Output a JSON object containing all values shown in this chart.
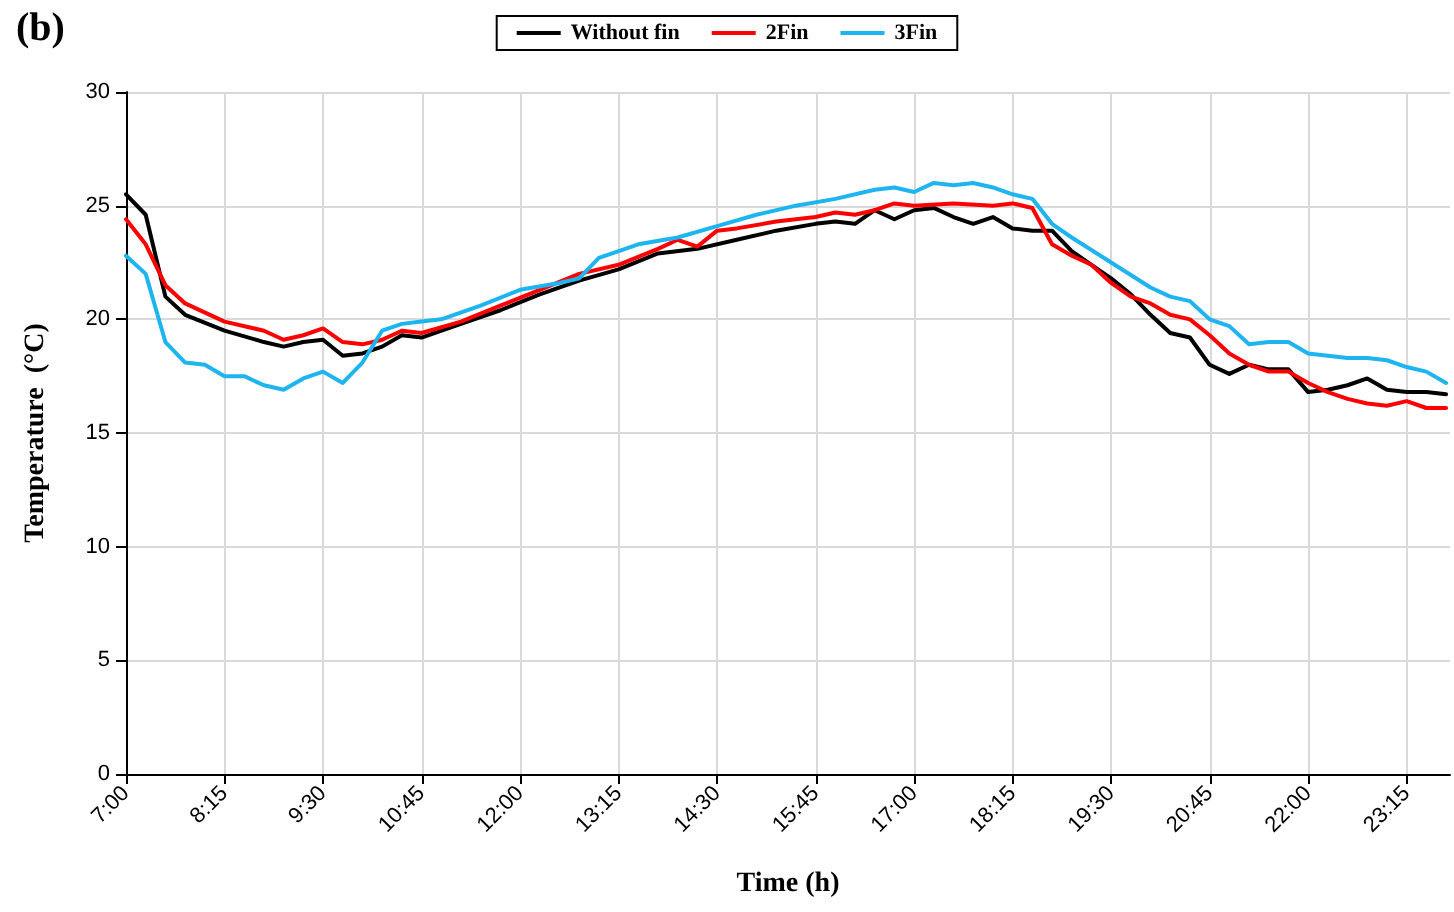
{
  "chart_data": {
    "type": "line",
    "xlabel": "Time (h)",
    "ylabel": "Temperature  (°C)",
    "annotations": [
      "(b)"
    ],
    "xlim": [
      7,
      23.8
    ],
    "xticks": [
      {
        "value": 7,
        "label": "7:00"
      },
      {
        "value": 8.25,
        "label": "8:15"
      },
      {
        "value": 9.5,
        "label": "9:30"
      },
      {
        "value": 10.75,
        "label": "10:45"
      },
      {
        "value": 12,
        "label": "12:00"
      },
      {
        "value": 13.25,
        "label": "13:15"
      },
      {
        "value": 14.5,
        "label": "14:30"
      },
      {
        "value": 15.75,
        "label": "15:45"
      },
      {
        "value": 17,
        "label": "17:00"
      },
      {
        "value": 18.25,
        "label": "18:15"
      },
      {
        "value": 19.5,
        "label": "19:30"
      },
      {
        "value": 20.75,
        "label": "20:45"
      },
      {
        "value": 22,
        "label": "22:00"
      },
      {
        "value": 23.25,
        "label": "23:15"
      }
    ],
    "ylim": [
      0,
      30
    ],
    "yticks": [
      0,
      5,
      10,
      15,
      20,
      25,
      30
    ],
    "grid": true,
    "legend": "top",
    "marker": "none",
    "line_style": "solid",
    "series": [
      {
        "name": "Without fin",
        "color": "#000000",
        "x": [
          7,
          7.25,
          7.5,
          7.75,
          8.25,
          8.75,
          9,
          9.25,
          9.5,
          9.75,
          10,
          10.25,
          10.5,
          10.75,
          11.25,
          11.75,
          12.25,
          12.75,
          13.25,
          13.75,
          14.25,
          14.75,
          15.25,
          15.75,
          16,
          16.25,
          16.5,
          16.75,
          17,
          17.25,
          17.5,
          17.75,
          18,
          18.25,
          18.5,
          18.75,
          19,
          19.25,
          19.5,
          19.75,
          20,
          20.25,
          20.5,
          20.75,
          21,
          21.25,
          21.5,
          21.75,
          22,
          22.25,
          22.5,
          22.75,
          23,
          23.25,
          23.5,
          23.75
        ],
        "values": [
          25.5,
          24.6,
          21.0,
          20.2,
          19.5,
          19.0,
          18.8,
          19.0,
          19.1,
          18.4,
          18.5,
          18.8,
          19.3,
          19.2,
          19.8,
          20.4,
          21.1,
          21.7,
          22.2,
          22.9,
          23.1,
          23.5,
          23.9,
          24.2,
          24.3,
          24.2,
          24.8,
          24.4,
          24.8,
          24.9,
          24.5,
          24.2,
          24.5,
          24.0,
          23.9,
          23.9,
          23.0,
          22.4,
          21.8,
          21.1,
          20.2,
          19.4,
          19.2,
          18.0,
          17.6,
          18.0,
          17.8,
          17.8,
          16.8,
          16.9,
          17.1,
          17.4,
          16.9,
          16.8,
          16.8,
          16.7
        ]
      },
      {
        "name": "2Fin",
        "color": "#ff0000",
        "x": [
          7,
          7.25,
          7.5,
          7.75,
          8.25,
          8.75,
          9,
          9.25,
          9.5,
          9.75,
          10,
          10.25,
          10.5,
          10.75,
          11.25,
          11.75,
          12.25,
          12.75,
          13.25,
          13.75,
          14,
          14.25,
          14.5,
          14.75,
          15.25,
          15.75,
          16,
          16.25,
          16.5,
          16.75,
          17,
          17.5,
          18,
          18.25,
          18.5,
          18.75,
          19,
          19.25,
          19.5,
          19.75,
          20,
          20.25,
          20.5,
          20.75,
          21,
          21.25,
          21.5,
          21.75,
          22,
          22.25,
          22.5,
          22.75,
          23,
          23.25,
          23.5,
          23.75
        ],
        "values": [
          24.4,
          23.3,
          21.5,
          20.7,
          19.9,
          19.5,
          19.1,
          19.3,
          19.6,
          19.0,
          18.9,
          19.1,
          19.5,
          19.4,
          19.9,
          20.6,
          21.3,
          22.0,
          22.4,
          23.1,
          23.5,
          23.2,
          23.9,
          24.0,
          24.3,
          24.5,
          24.7,
          24.6,
          24.8,
          25.1,
          25.0,
          25.1,
          25.0,
          25.1,
          24.9,
          23.3,
          22.8,
          22.4,
          21.6,
          21.0,
          20.7,
          20.2,
          20.0,
          19.3,
          18.5,
          18.0,
          17.7,
          17.7,
          17.2,
          16.8,
          16.5,
          16.3,
          16.2,
          16.4,
          16.1,
          16.1
        ]
      },
      {
        "name": "3Fin",
        "color": "#1eb4f0",
        "x": [
          7,
          7.25,
          7.5,
          7.75,
          8,
          8.25,
          8.5,
          8.75,
          9,
          9.25,
          9.5,
          9.75,
          10,
          10.25,
          10.5,
          10.75,
          11,
          11.5,
          12,
          12.5,
          12.75,
          13,
          13.5,
          14,
          14.5,
          15,
          15.5,
          16,
          16.5,
          16.75,
          17,
          17.25,
          17.5,
          17.75,
          18,
          18.25,
          18.5,
          18.75,
          19,
          19.5,
          20,
          20.25,
          20.5,
          20.75,
          21,
          21.25,
          21.5,
          21.75,
          22,
          22.5,
          22.75,
          23,
          23.25,
          23.5,
          23.75
        ],
        "values": [
          22.8,
          22.0,
          19.0,
          18.1,
          18.0,
          17.5,
          17.5,
          17.1,
          16.9,
          17.4,
          17.7,
          17.2,
          18.1,
          19.5,
          19.8,
          19.9,
          20.0,
          20.6,
          21.3,
          21.6,
          21.8,
          22.7,
          23.3,
          23.6,
          24.1,
          24.6,
          25.0,
          25.3,
          25.7,
          25.8,
          25.6,
          26.0,
          25.9,
          26.0,
          25.8,
          25.5,
          25.3,
          24.2,
          23.6,
          22.5,
          21.4,
          21.0,
          20.8,
          20.0,
          19.7,
          18.9,
          19.0,
          19.0,
          18.5,
          18.3,
          18.3,
          18.2,
          17.9,
          17.7,
          17.2
        ]
      }
    ]
  }
}
